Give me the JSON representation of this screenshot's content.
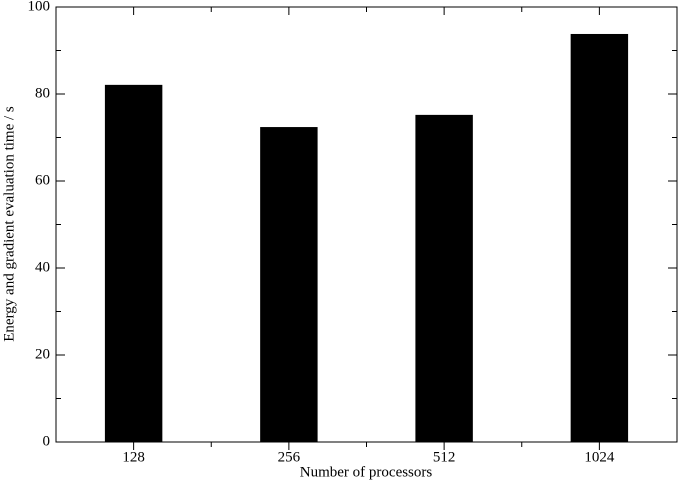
{
  "chart_data": {
    "type": "bar",
    "x_label": "Number of processors",
    "y_label": "Energy and gradient evaluation time / s",
    "categories": [
      "128",
      "256",
      "512",
      "1024"
    ],
    "values": [
      82.1,
      72.4,
      75.2,
      93.8
    ],
    "color": "#000000",
    "ylim": [
      0,
      100
    ],
    "yticks": [
      0,
      20,
      40,
      60,
      80,
      100
    ],
    "yminorticks": [
      10,
      30,
      50,
      70,
      90
    ],
    "grid": false
  }
}
